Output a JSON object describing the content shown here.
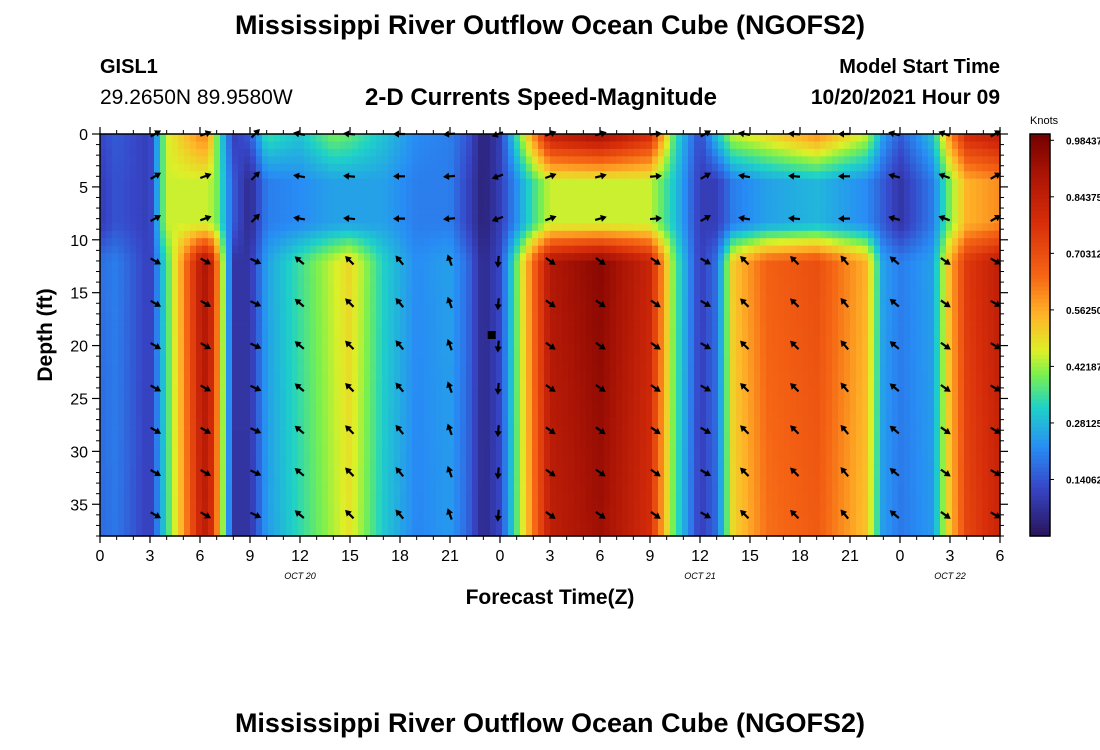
{
  "header": {
    "title": "Mississippi River Outflow Ocean Cube (NGOFS2)",
    "station": "GISL1",
    "coordinates": "29.2650N  89.9580W",
    "subtitle": "2-D Currents Speed-Magnitude",
    "model_start_label": "Model Start Time",
    "model_start_value": "10/20/2021 Hour 09"
  },
  "footer": {
    "repeat_title": "Mississippi River Outflow Ocean Cube (NGOFS2)"
  },
  "chart_data": {
    "type": "heatmap",
    "title": "2-D Currents Speed-Magnitude",
    "xlabel": "Forecast Time(Z)",
    "ylabel": "Depth (ft)",
    "x_range_hours": [
      0,
      54
    ],
    "y_range_ft": [
      0,
      38
    ],
    "y_ticks": [
      0,
      5,
      10,
      15,
      20,
      25,
      30,
      35
    ],
    "x_tick_labels": [
      "0",
      "3",
      "6",
      "9",
      "12",
      "15",
      "18",
      "21",
      "0",
      "3",
      "6",
      "9",
      "12",
      "15",
      "18",
      "21",
      "0",
      "3",
      "6"
    ],
    "date_labels": [
      {
        "text": "OCT 20",
        "hour": 12
      },
      {
        "text": "OCT 21",
        "hour": 36
      },
      {
        "text": "OCT 22",
        "hour": 51
      }
    ],
    "colorbar": {
      "units": "Knots",
      "min": 0,
      "max": 1.0,
      "tick_labels": [
        "0.98437",
        "0.84375",
        "0.70312",
        "0.56250",
        "0.42187",
        "0.28125",
        "0.14062"
      ],
      "tick_values": [
        0.98437,
        0.84375,
        0.70312,
        0.5625,
        0.42187,
        0.28125,
        0.14062
      ]
    },
    "speed_surface_keyframes": [
      {
        "hour": 0,
        "surface": 0.12,
        "band": 0.1,
        "deep": 0.18
      },
      {
        "hour": 1,
        "surface": 0.15,
        "band": 0.14,
        "deep": 0.2
      },
      {
        "hour": 3,
        "surface": 0.1,
        "band": 0.1,
        "deep": 0.1
      },
      {
        "hour": 4,
        "surface": 0.45,
        "band": 0.45,
        "deep": 0.35
      },
      {
        "hour": 6,
        "surface": 0.6,
        "band": 0.45,
        "deep": 0.85
      },
      {
        "hour": 6.5,
        "surface": 0.6,
        "band": 0.45,
        "deep": 0.9
      },
      {
        "hour": 7,
        "surface": 0.4,
        "band": 0.4,
        "deep": 0.65
      },
      {
        "hour": 8,
        "surface": 0.1,
        "band": 0.15,
        "deep": 0.08
      },
      {
        "hour": 9,
        "surface": 0.15,
        "band": 0.05,
        "deep": 0.08
      },
      {
        "hour": 10,
        "surface": 0.35,
        "band": 0.2,
        "deep": 0.25
      },
      {
        "hour": 12,
        "surface": 0.3,
        "band": 0.22,
        "deep": 0.35
      },
      {
        "hour": 14,
        "surface": 0.4,
        "band": 0.25,
        "deep": 0.45
      },
      {
        "hour": 15,
        "surface": 0.38,
        "band": 0.25,
        "deep": 0.5
      },
      {
        "hour": 17,
        "surface": 0.3,
        "band": 0.25,
        "deep": 0.32
      },
      {
        "hour": 19,
        "surface": 0.22,
        "band": 0.2,
        "deep": 0.22
      },
      {
        "hour": 21,
        "surface": 0.2,
        "band": 0.2,
        "deep": 0.25
      },
      {
        "hour": 22,
        "surface": 0.15,
        "band": 0.12,
        "deep": 0.18
      },
      {
        "hour": 23,
        "surface": 0.03,
        "band": 0.03,
        "deep": 0.05
      },
      {
        "hour": 24,
        "surface": 0.1,
        "band": 0.1,
        "deep": 0.12
      },
      {
        "hour": 26,
        "surface": 0.6,
        "band": 0.35,
        "deep": 0.65
      },
      {
        "hour": 27,
        "surface": 0.85,
        "band": 0.45,
        "deep": 0.88
      },
      {
        "hour": 30,
        "surface": 0.92,
        "band": 0.45,
        "deep": 0.96
      },
      {
        "hour": 33,
        "surface": 0.8,
        "band": 0.45,
        "deep": 0.82
      },
      {
        "hour": 34.5,
        "surface": 0.35,
        "band": 0.3,
        "deep": 0.38
      },
      {
        "hour": 36,
        "surface": 0.12,
        "band": 0.1,
        "deep": 0.1
      },
      {
        "hour": 37,
        "surface": 0.3,
        "band": 0.1,
        "deep": 0.18
      },
      {
        "hour": 38,
        "surface": 0.45,
        "band": 0.2,
        "deep": 0.52
      },
      {
        "hour": 40,
        "surface": 0.5,
        "band": 0.25,
        "deep": 0.66
      },
      {
        "hour": 43,
        "surface": 0.6,
        "band": 0.28,
        "deep": 0.7
      },
      {
        "hour": 46,
        "surface": 0.45,
        "band": 0.22,
        "deep": 0.55
      },
      {
        "hour": 47,
        "surface": 0.25,
        "band": 0.15,
        "deep": 0.25
      },
      {
        "hour": 48,
        "surface": 0.15,
        "band": 0.08,
        "deep": 0.2
      },
      {
        "hour": 50,
        "surface": 0.3,
        "band": 0.2,
        "deep": 0.25
      },
      {
        "hour": 51,
        "surface": 0.6,
        "band": 0.4,
        "deep": 0.55
      },
      {
        "hour": 52,
        "surface": 0.8,
        "band": 0.55,
        "deep": 0.75
      },
      {
        "hour": 54,
        "surface": 0.85,
        "band": 0.6,
        "deep": 0.85
      }
    ],
    "vector_columns": [
      {
        "hour": 3.3,
        "surface": 30,
        "deep": -30
      },
      {
        "hour": 6.3,
        "surface": 20,
        "deep": -30
      },
      {
        "hour": 9.3,
        "surface": 45,
        "deep": -25
      },
      {
        "hour": 12.0,
        "surface": 170,
        "deep": 140
      },
      {
        "hour": 15.0,
        "surface": 175,
        "deep": 135
      },
      {
        "hour": 18.0,
        "surface": 180,
        "deep": 130
      },
      {
        "hour": 21.0,
        "surface": 185,
        "deep": 110
      },
      {
        "hour": 23.9,
        "surface": 200,
        "deep": -95
      },
      {
        "hour": 27.0,
        "surface": 20,
        "deep": -35
      },
      {
        "hour": 30.0,
        "surface": 15,
        "deep": -35
      },
      {
        "hour": 33.3,
        "surface": 5,
        "deep": -35
      },
      {
        "hour": 36.3,
        "surface": 30,
        "deep": -30
      },
      {
        "hour": 38.7,
        "surface": 170,
        "deep": 135
      },
      {
        "hour": 41.7,
        "surface": 175,
        "deep": 135
      },
      {
        "hour": 44.7,
        "surface": 180,
        "deep": 130
      },
      {
        "hour": 47.7,
        "surface": 165,
        "deep": 140
      },
      {
        "hour": 50.7,
        "surface": 160,
        "deep": -35
      },
      {
        "hour": 53.7,
        "surface": 30,
        "deep": -30
      }
    ],
    "vector_depths_ft": [
      0,
      4,
      8,
      12,
      16,
      20,
      24,
      28,
      32,
      36
    ],
    "marker": {
      "hour": 23.5,
      "depth": 19
    }
  }
}
